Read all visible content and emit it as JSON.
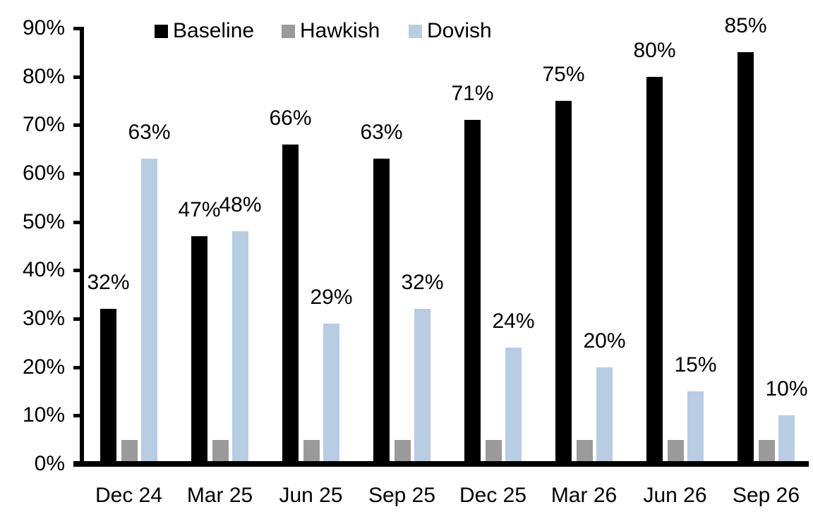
{
  "colors": {
    "baseline": "#000000",
    "hawkish": "#9A9A9A",
    "dovish": "#B8CCE4",
    "axis": "#000000",
    "text": "#000000",
    "background": "#FFFFFF"
  },
  "legend": {
    "position": "top",
    "entries": [
      {
        "label": "Baseline",
        "color": "#000000"
      },
      {
        "label": "Hawkish",
        "color": "#9A9A9A"
      },
      {
        "label": "Dovish",
        "color": "#B8CCE4"
      }
    ]
  },
  "chart_data": {
    "type": "bar",
    "title": "",
    "xlabel": "",
    "ylabel": "",
    "categories": [
      "Dec 24",
      "Mar 25",
      "Jun 25",
      "Sep 25",
      "Dec 25",
      "Mar 26",
      "Jun 26",
      "Sep 26"
    ],
    "series": [
      {
        "name": "Baseline",
        "color": "#000000",
        "values": [
          32,
          47,
          66,
          63,
          71,
          75,
          80,
          85
        ],
        "labels_shown": true
      },
      {
        "name": "Hawkish",
        "color": "#9A9A9A",
        "values": [
          5,
          5,
          5,
          5,
          5,
          5,
          5,
          5
        ],
        "labels_shown": false
      },
      {
        "name": "Dovish",
        "color": "#B8CCE4",
        "values": [
          63,
          48,
          29,
          32,
          24,
          20,
          15,
          10
        ],
        "labels_shown": true
      }
    ],
    "ylim": [
      0,
      90
    ],
    "ytick_step": 10,
    "ytick_labels": [
      "0%",
      "10%",
      "20%",
      "30%",
      "40%",
      "50%",
      "60%",
      "70%",
      "80%",
      "90%"
    ],
    "data_label_format": "{v}%",
    "grid": false,
    "legend_position": "top"
  }
}
